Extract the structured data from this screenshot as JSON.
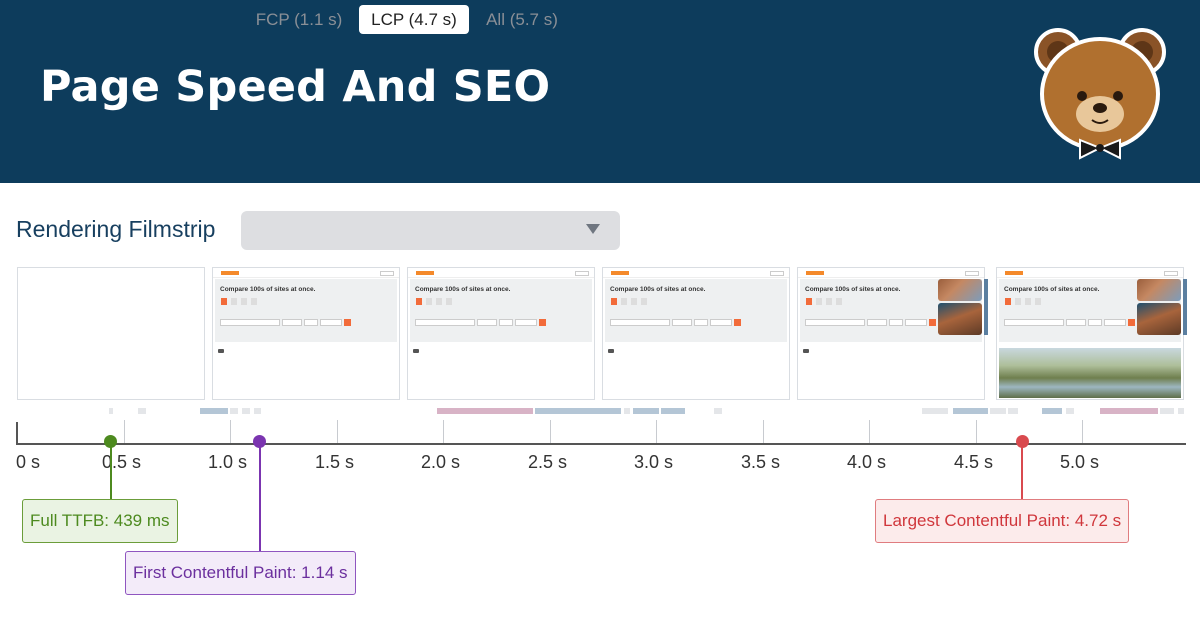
{
  "header": {
    "title": "Page Speed And SEO"
  },
  "logo": {
    "icon": "bear-mascot-logo"
  },
  "filmstrip": {
    "title": "Rendering Filmstrip",
    "toggle": {
      "options": [
        "FCP (1.1 s)",
        "LCP (4.7 s)",
        "All (5.7 s)"
      ],
      "selected": "LCP (4.7 s)",
      "dropdown_icon": "caret-down-icon"
    },
    "frame_heading": "Compare 100s of sites at once.",
    "frame_count": 6
  },
  "timeline": {
    "tick_labels": [
      "0 s",
      "0.5 s",
      "1.0 s",
      "1.5 s",
      "2.0 s",
      "2.5 s",
      "3.0 s",
      "3.5 s",
      "4.0 s",
      "4.5 s",
      "5.0 s"
    ]
  },
  "markers": {
    "ttfb": {
      "label": "Full TTFB: 439 ms",
      "time_s": 0.439,
      "color": "#4d8a1f"
    },
    "fcp": {
      "label": "First Contentful Paint: 1.14 s",
      "time_s": 1.14,
      "color": "#7b35b0"
    },
    "lcp": {
      "label": "Largest Contentful Paint: 4.72 s",
      "time_s": 4.72,
      "color": "#d94a4f"
    }
  }
}
